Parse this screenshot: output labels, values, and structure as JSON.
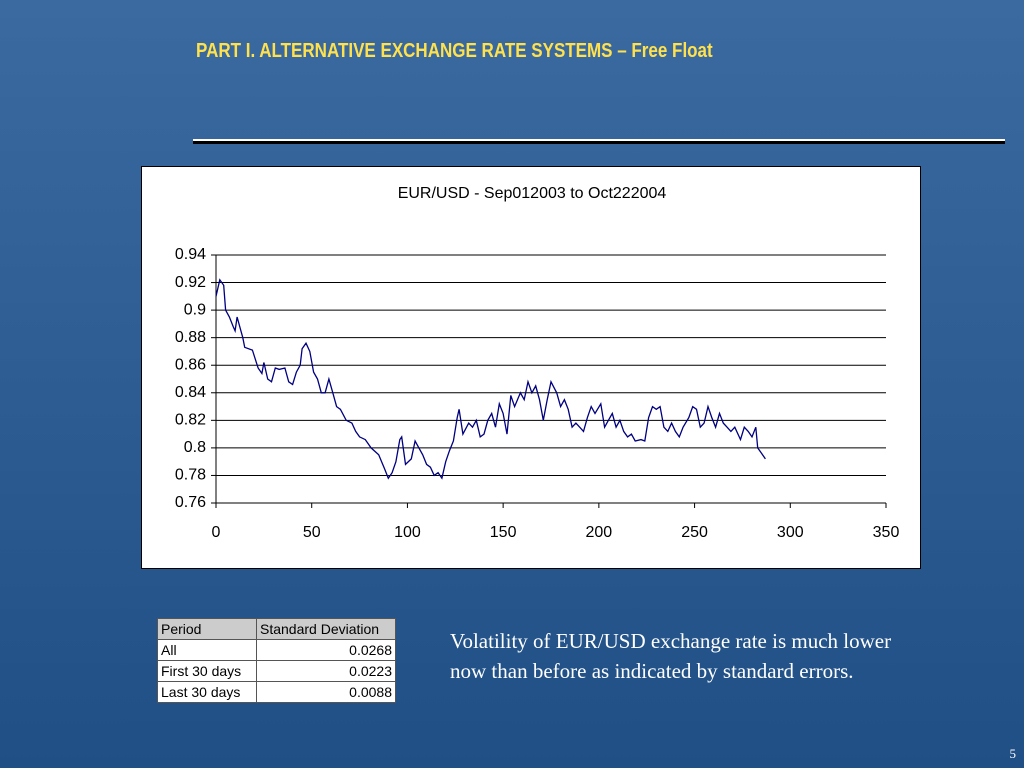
{
  "slide_title": "PART I. ALTERNATIVE EXCHANGE RATE SYSTEMS – Free Float",
  "chart_data": {
    "type": "line",
    "title": "EUR/USD - Sep012003 to Oct222004",
    "x": [
      0,
      2,
      4,
      5,
      7,
      9,
      10,
      11,
      12,
      14,
      15,
      19,
      22,
      24,
      25,
      27,
      29,
      31,
      33,
      36,
      38,
      40,
      42,
      44,
      45,
      47,
      49,
      51,
      53,
      55,
      57,
      59,
      61,
      63,
      65,
      68,
      71,
      73,
      75,
      78,
      81,
      85,
      88,
      90,
      92,
      94,
      96,
      97,
      99,
      102,
      104,
      106,
      108,
      110,
      112,
      114,
      116,
      118,
      120,
      122,
      124,
      126,
      127,
      129,
      132,
      134,
      136,
      138,
      140,
      142,
      144,
      146,
      148,
      150,
      152,
      154,
      156,
      159,
      161,
      163,
      165,
      167,
      169,
      171,
      173,
      175,
      178,
      180,
      182,
      184,
      186,
      188,
      190,
      192,
      194,
      196,
      198,
      201,
      203,
      205,
      207,
      209,
      211,
      213,
      215,
      217,
      219,
      222,
      224,
      226,
      228,
      230,
      232,
      234,
      236,
      238,
      240,
      242,
      244,
      247,
      249,
      251,
      253,
      255,
      257,
      259,
      261,
      263,
      265,
      267,
      269,
      271,
      274,
      276,
      278,
      280,
      282,
      283,
      285,
      287
    ],
    "series": [
      {
        "name": "EUR/USD",
        "color": "#000080",
        "values": [
          0.91,
          0.922,
          0.918,
          0.9,
          0.895,
          0.888,
          0.885,
          0.895,
          0.89,
          0.88,
          0.873,
          0.871,
          0.858,
          0.854,
          0.862,
          0.85,
          0.848,
          0.858,
          0.857,
          0.858,
          0.848,
          0.846,
          0.855,
          0.86,
          0.872,
          0.876,
          0.87,
          0.855,
          0.85,
          0.84,
          0.84,
          0.85,
          0.84,
          0.83,
          0.828,
          0.82,
          0.818,
          0.812,
          0.808,
          0.806,
          0.8,
          0.795,
          0.785,
          0.778,
          0.782,
          0.79,
          0.806,
          0.808,
          0.788,
          0.792,
          0.805,
          0.8,
          0.795,
          0.788,
          0.786,
          0.78,
          0.782,
          0.778,
          0.79,
          0.798,
          0.805,
          0.822,
          0.828,
          0.81,
          0.818,
          0.815,
          0.82,
          0.808,
          0.81,
          0.82,
          0.825,
          0.815,
          0.832,
          0.825,
          0.81,
          0.838,
          0.83,
          0.84,
          0.835,
          0.848,
          0.84,
          0.845,
          0.835,
          0.82,
          0.835,
          0.848,
          0.84,
          0.83,
          0.835,
          0.828,
          0.815,
          0.818,
          0.815,
          0.812,
          0.822,
          0.83,
          0.825,
          0.832,
          0.815,
          0.82,
          0.825,
          0.815,
          0.82,
          0.812,
          0.808,
          0.81,
          0.805,
          0.806,
          0.805,
          0.822,
          0.83,
          0.828,
          0.83,
          0.815,
          0.812,
          0.818,
          0.812,
          0.808,
          0.815,
          0.822,
          0.83,
          0.828,
          0.815,
          0.818,
          0.83,
          0.822,
          0.815,
          0.825,
          0.818,
          0.815,
          0.812,
          0.815,
          0.806,
          0.815,
          0.812,
          0.808,
          0.815,
          0.8,
          0.796,
          0.792
        ]
      }
    ],
    "xlim": [
      0,
      350
    ],
    "xticks": [
      0,
      50,
      100,
      150,
      200,
      250,
      300,
      350
    ],
    "ylim": [
      0.76,
      0.94
    ],
    "yticks": [
      0.76,
      0.78,
      0.8,
      0.82,
      0.84,
      0.86,
      0.88,
      0.9,
      0.92,
      0.94
    ],
    "grid": true
  },
  "table": {
    "header": [
      "Period",
      "Standard Deviation"
    ],
    "rows": [
      [
        "All",
        "0.0268"
      ],
      [
        "First 30 days",
        "0.0223"
      ],
      [
        "Last 30 days",
        "0.0088"
      ]
    ]
  },
  "body_text": "Volatility of EUR/USD exchange rate is much lower now than before as indicated by standard errors.",
  "page_number": "5"
}
